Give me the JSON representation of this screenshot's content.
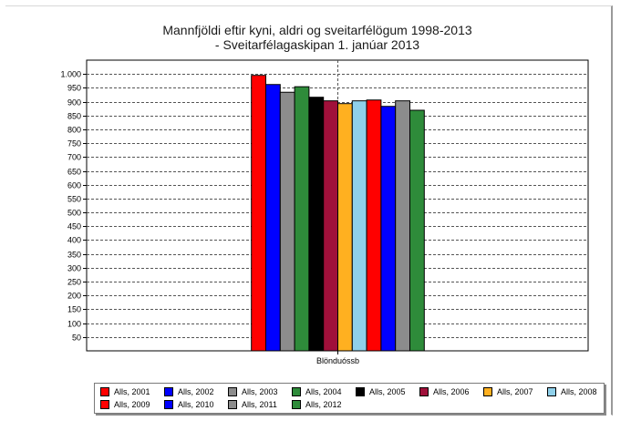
{
  "chart_data": {
    "type": "bar",
    "title_lines": [
      "Mannfjöldi eftir kyni, aldri og sveitarfélögum 1998-2013",
      "- Sveitarfélagaskipan 1. janúar 2013"
    ],
    "categories": [
      "Blönduóssb"
    ],
    "ylim": [
      0,
      1050
    ],
    "y_ticks": [
      50,
      100,
      150,
      200,
      250,
      300,
      350,
      400,
      450,
      500,
      550,
      600,
      650,
      700,
      750,
      800,
      850,
      900,
      950,
      1000
    ],
    "y_tick_labels": [
      "50",
      "100",
      "150",
      "200",
      "250",
      "300",
      "350",
      "400",
      "450",
      "500",
      "550",
      "600",
      "650",
      "700",
      "750",
      "800",
      "850",
      "900",
      "950",
      "1.000"
    ],
    "grid": true,
    "legend_position": "bottom",
    "series": [
      {
        "name": "Alls, 2001",
        "color": "#ff0000",
        "values": [
          995
        ]
      },
      {
        "name": "Alls, 2002",
        "color": "#0000ff",
        "values": [
          962
        ]
      },
      {
        "name": "Alls, 2003",
        "color": "#8c8c8c",
        "values": [
          934
        ]
      },
      {
        "name": "Alls, 2004",
        "color": "#2e8b3a",
        "values": [
          954
        ]
      },
      {
        "name": "Alls, 2005",
        "color": "#000000",
        "values": [
          916
        ]
      },
      {
        "name": "Alls, 2006",
        "color": "#a0103a",
        "values": [
          903
        ]
      },
      {
        "name": "Alls, 2007",
        "color": "#ffb020",
        "values": [
          893
        ]
      },
      {
        "name": "Alls, 2008",
        "color": "#8fd0ea",
        "values": [
          903
        ]
      },
      {
        "name": "Alls, 2009",
        "color": "#ff0000",
        "values": [
          906
        ]
      },
      {
        "name": "Alls, 2010",
        "color": "#0000ff",
        "values": [
          883
        ]
      },
      {
        "name": "Alls, 2011",
        "color": "#8c8c8c",
        "values": [
          903
        ]
      },
      {
        "name": "Alls, 2012",
        "color": "#2e8b3a",
        "values": [
          869
        ]
      }
    ]
  }
}
